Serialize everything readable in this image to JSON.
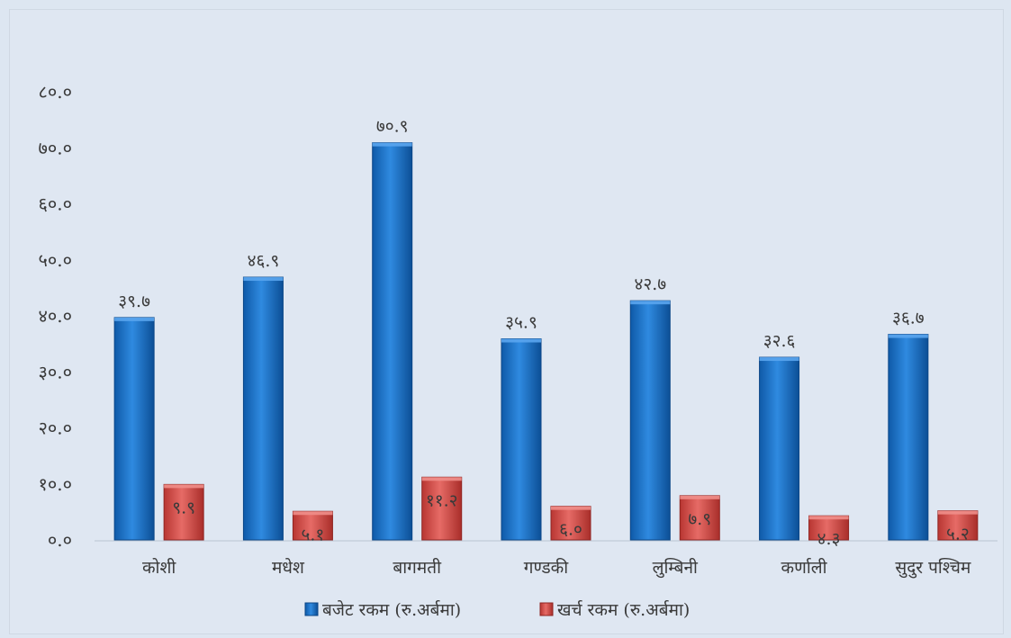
{
  "chart_data": {
    "type": "bar",
    "categories": [
      "कोशी",
      "मधेश",
      "बागमती",
      "गण्डकी",
      "लुम्बिनी",
      "कर्णाली",
      "सुदुर पश्चिम"
    ],
    "series": [
      {
        "name": "बजेट रकम (रु.अर्बमा)",
        "values": [
          39.7,
          46.9,
          70.9,
          35.9,
          42.7,
          32.6,
          36.7
        ],
        "labels": [
          "३९.७",
          "४६.९",
          "७०.९",
          "३५.९",
          "४२.७",
          "३२.६",
          "३६.७"
        ],
        "color": "#1e73c8"
      },
      {
        "name": "खर्च रकम (रु.अर्बमा)",
        "values": [
          9.9,
          5.1,
          11.2,
          6.0,
          7.9,
          4.3,
          5.2
        ],
        "labels": [
          "९.९",
          "५.१",
          "११.२",
          "६.०",
          "७.९",
          "४.३",
          "५.२"
        ],
        "color": "#d9534f"
      }
    ],
    "yticks": [
      0,
      10,
      20,
      30,
      40,
      50,
      60,
      70,
      80
    ],
    "ytick_labels": [
      "०.०",
      "१०.०",
      "२०.०",
      "३०.०",
      "४०.०",
      "५०.०",
      "६०.०",
      "७०.०",
      "८०.०"
    ],
    "ylim": [
      0,
      80
    ],
    "legend": "bottom",
    "grid": false
  }
}
